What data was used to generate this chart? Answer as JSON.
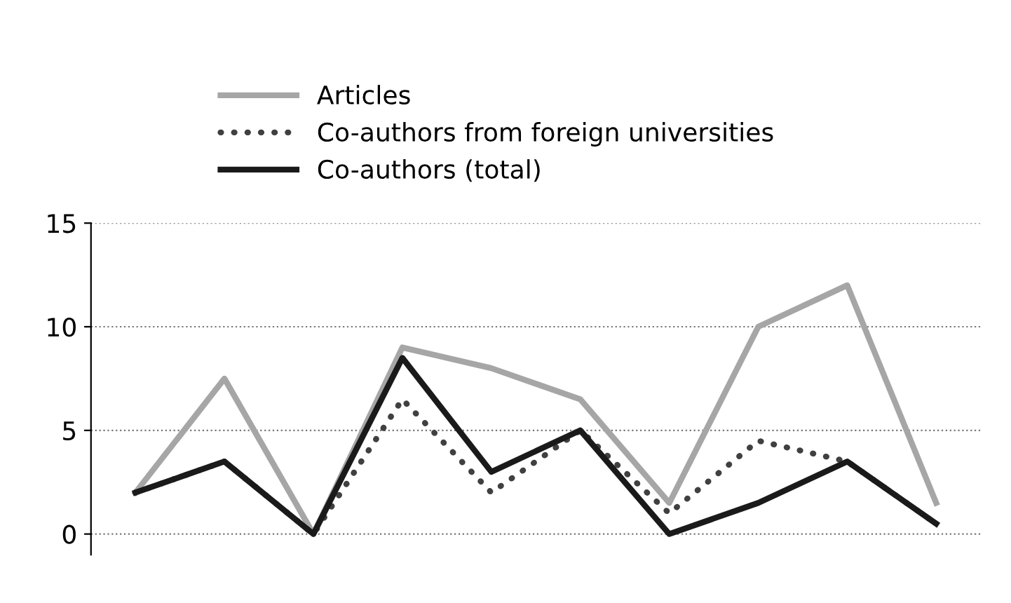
{
  "chart_data": {
    "type": "line",
    "categories": [
      null,
      null,
      null,
      null,
      null,
      null,
      null,
      null,
      null,
      null
    ],
    "series": [
      {
        "name": "Articles",
        "color": "#a6a6a6",
        "values": [
          2,
          7.5,
          0,
          9,
          8,
          6.5,
          1.5,
          10,
          12,
          1.5
        ]
      },
      {
        "name": "Co-authors from foreign universities",
        "color": "#404040",
        "line_style": "dotted",
        "values": [
          2,
          3.5,
          0,
          6.5,
          2,
          5,
          1,
          4.5,
          3.5,
          0.5
        ]
      },
      {
        "name": "Co-authors (total)",
        "color": "#1a1a1a",
        "values": [
          2,
          3.5,
          0,
          8.5,
          3,
          5,
          0,
          1.5,
          3.5,
          0.5
        ]
      }
    ],
    "ylim": [
      -1,
      15
    ],
    "yticks": [
      0,
      5,
      10,
      15
    ],
    "grid": "y",
    "legend": "top left",
    "line_style": "solid"
  }
}
